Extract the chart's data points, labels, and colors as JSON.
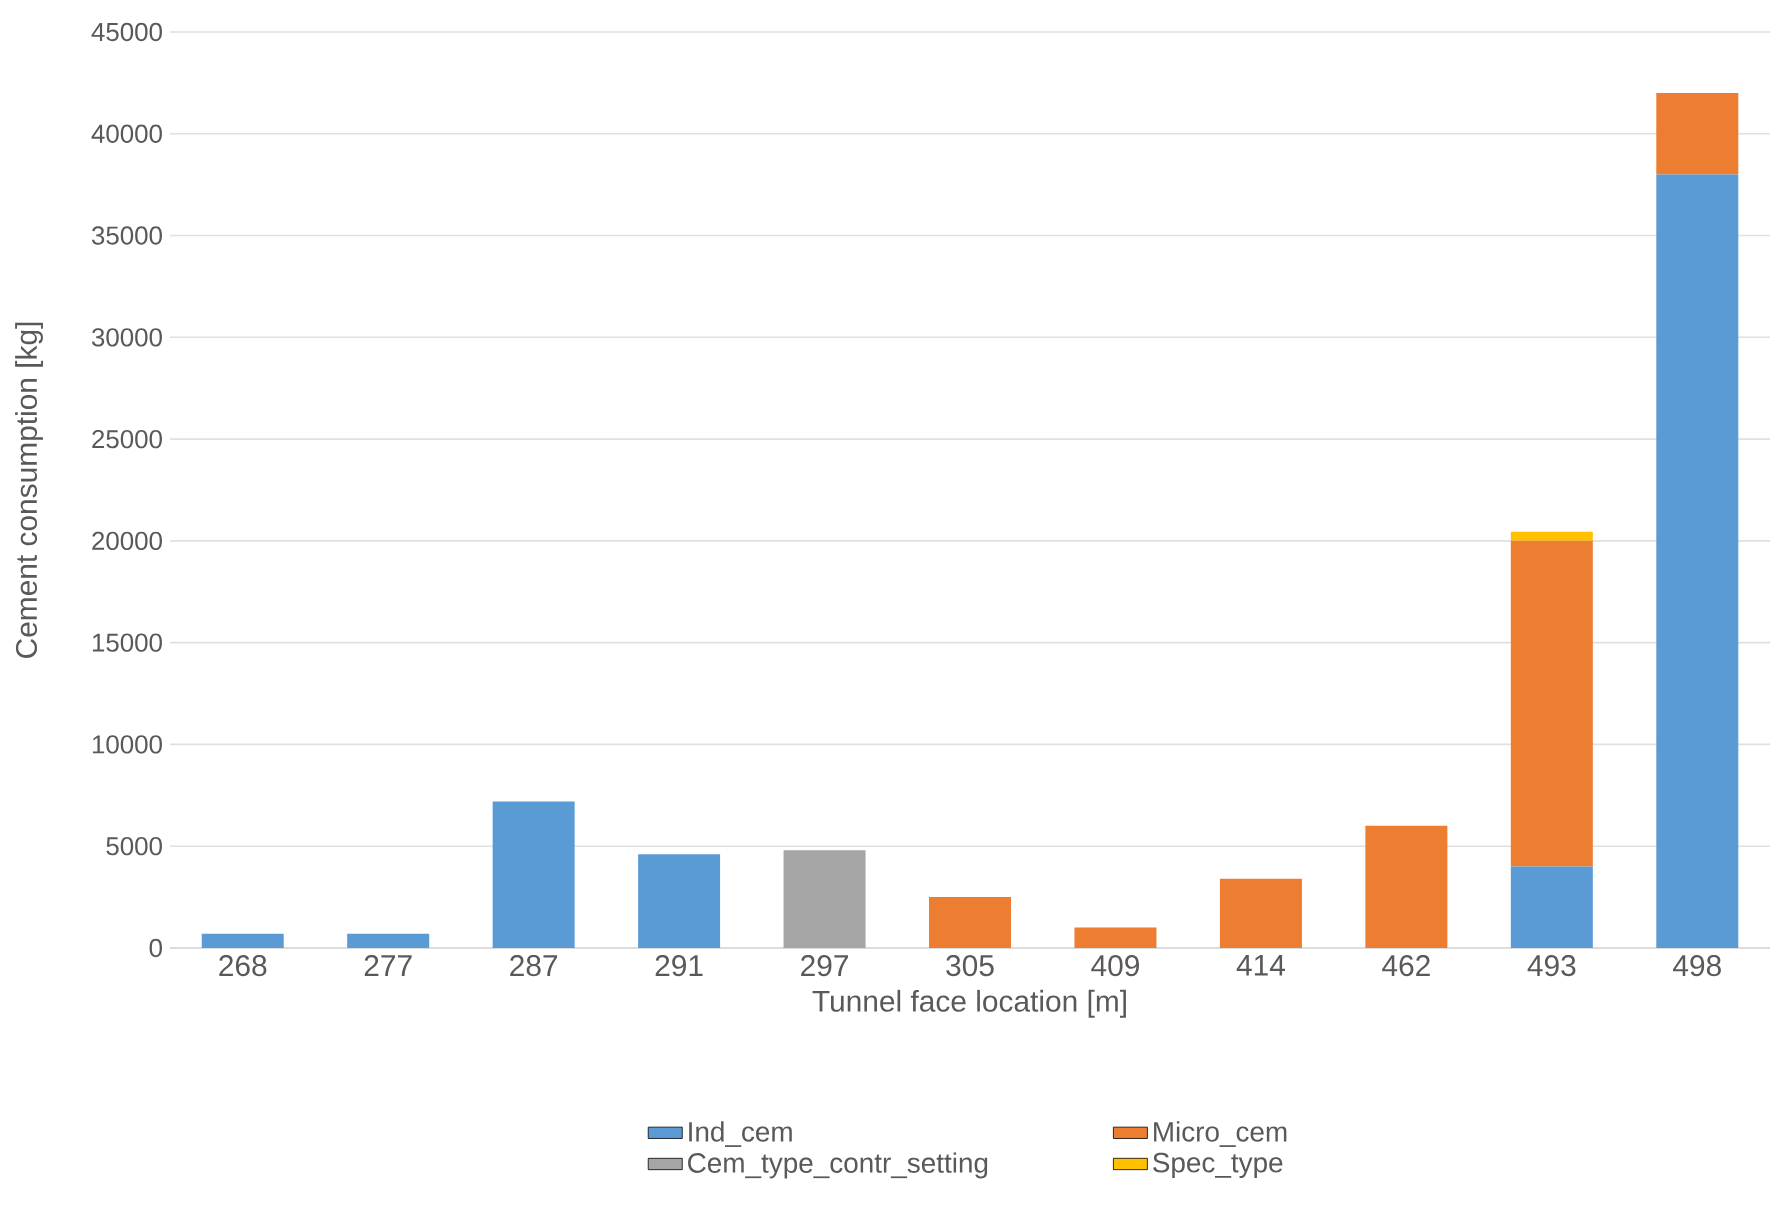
{
  "chart_data": {
    "type": "bar",
    "stacked": true,
    "xlabel": "Tunnel face location [m]",
    "ylabel": "Cement consumption [kg]",
    "categories": [
      "268",
      "277",
      "287",
      "291",
      "297",
      "305",
      "409",
      "414",
      "462",
      "493",
      "498"
    ],
    "series": [
      {
        "name": "Ind_cem",
        "color": "#5b9bd5",
        "values": [
          700,
          700,
          7200,
          4600,
          null,
          null,
          null,
          null,
          null,
          4000,
          38000
        ]
      },
      {
        "name": "Micro_cem",
        "color": "#ed7d31",
        "values": [
          null,
          null,
          null,
          null,
          null,
          2500,
          1000,
          3400,
          6000,
          16000,
          4000
        ]
      },
      {
        "name": "Cem_type_contr_setting",
        "color": "#a5a5a5",
        "values": [
          null,
          null,
          null,
          null,
          4800,
          null,
          null,
          null,
          null,
          null,
          null
        ]
      },
      {
        "name": "Spec_type",
        "color": "#ffc000",
        "values": [
          null,
          null,
          null,
          null,
          null,
          null,
          null,
          null,
          null,
          450,
          null
        ]
      }
    ],
    "ylim": [
      0,
      45000
    ],
    "yticks": [
      0,
      5000,
      10000,
      15000,
      20000,
      25000,
      30000,
      35000,
      40000,
      45000
    ],
    "grid": "y",
    "legend": "bottom"
  }
}
